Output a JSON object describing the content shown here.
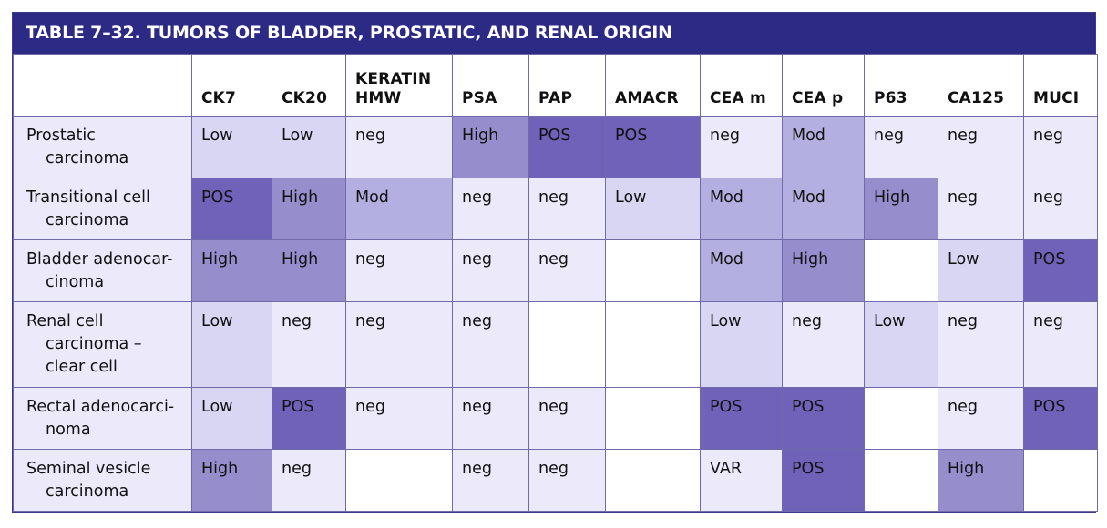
{
  "table": {
    "title": "TABLE 7–32.    TUMORS OF BLADDER, PROSTATIC, AND RENAL ORIGIN",
    "columns": [
      "",
      "CK7",
      "CK20",
      "KERATIN HMW",
      "PSA",
      "PAP",
      "AMACR",
      "CEA m",
      "CEA p",
      "P63",
      "CA125",
      "MUCI"
    ],
    "rows": [
      {
        "label": [
          "Prostatic",
          "carcinoma"
        ],
        "cells": [
          "Low",
          "Low",
          "neg",
          "High",
          "POS",
          "POS",
          "neg",
          "Mod",
          "neg",
          "neg",
          "neg"
        ]
      },
      {
        "label": [
          "Transitional cell",
          "carcinoma"
        ],
        "cells": [
          "POS",
          "High",
          "Mod",
          "neg",
          "neg",
          "Low",
          "Mod",
          "Mod",
          "High",
          "neg",
          "neg"
        ]
      },
      {
        "label": [
          "Bladder adenocar-",
          "cinoma"
        ],
        "cells": [
          "High",
          "High",
          "neg",
          "neg",
          "neg",
          "",
          "Mod",
          "High",
          "",
          "Low",
          "POS"
        ]
      },
      {
        "label": [
          "Renal cell",
          "carcinoma –",
          "clear cell"
        ],
        "cells": [
          "Low",
          "neg",
          "neg",
          "neg",
          "",
          "",
          "Low",
          "neg",
          "Low",
          "neg",
          "neg"
        ]
      },
      {
        "label": [
          "Rectal adenocarci-",
          "noma"
        ],
        "cells": [
          "Low",
          "POS",
          "neg",
          "neg",
          "neg",
          "",
          "POS",
          "POS",
          "",
          "neg",
          "POS"
        ]
      },
      {
        "label": [
          "Seminal vesicle",
          "carcinoma"
        ],
        "cells": [
          "High",
          "neg",
          "",
          "neg",
          "neg",
          "",
          "VAR",
          "POS",
          "",
          "High",
          ""
        ]
      }
    ]
  },
  "colors": {
    "title_bar": "#2d2a85",
    "low": "#d9d6f4",
    "mod": "#b3afe0",
    "high": "#968dcd",
    "pos": "#6f62b8",
    "neg": "#ebe9fa",
    "empty": "#ffffff"
  }
}
